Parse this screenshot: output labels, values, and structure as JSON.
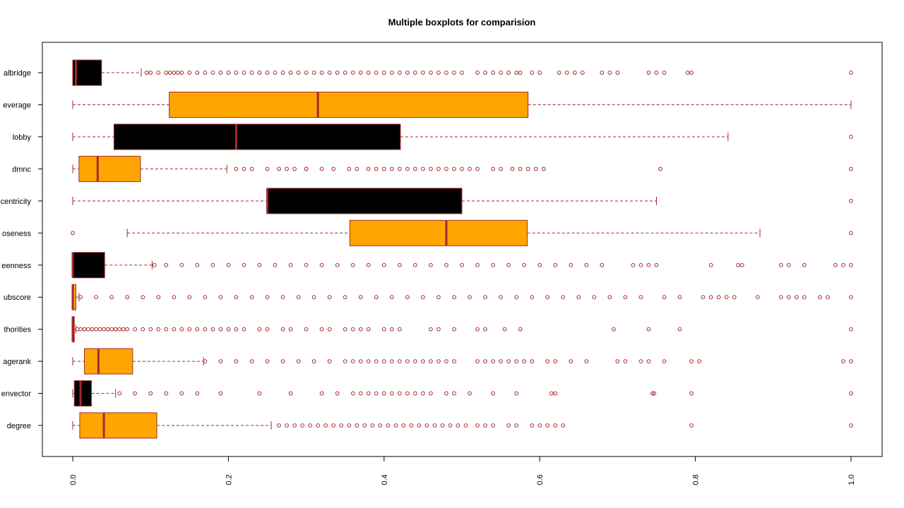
{
  "chart_data": {
    "type": "boxplot",
    "orientation": "horizontal",
    "title": "Multiple boxplots for comparision",
    "xlim": [
      0,
      1
    ],
    "x_ticks": [
      0,
      0.2,
      0.4,
      0.6,
      0.8,
      1
    ],
    "x_tick_labels": [
      "0.0",
      "0.2",
      "0.4",
      "0.6",
      "0.8",
      "1.0"
    ],
    "grid": false,
    "colors": {
      "box_fill_alternating": [
        "#ffa500",
        "#000000"
      ],
      "border": "#a52a2a",
      "median": "#a52a2a",
      "outlier": "#a52a2a"
    },
    "series": [
      {
        "label": "degree",
        "fill": "#ffa500",
        "whisker_low": 0.0,
        "q1": 0.009,
        "median": 0.04,
        "q3": 0.108,
        "whisker_high": 0.255,
        "outliers": [
          0.265,
          0.275,
          0.285,
          0.295,
          0.305,
          0.315,
          0.325,
          0.335,
          0.345,
          0.355,
          0.365,
          0.375,
          0.385,
          0.395,
          0.405,
          0.415,
          0.425,
          0.435,
          0.445,
          0.455,
          0.465,
          0.475,
          0.485,
          0.495,
          0.505,
          0.52,
          0.53,
          0.54,
          0.56,
          0.57,
          0.59,
          0.6,
          0.61,
          0.62,
          0.63,
          0.795,
          1.0
        ]
      },
      {
        "label": "envector",
        "fill": "#000000",
        "whisker_low": 0.0,
        "q1": 0.002,
        "median": 0.01,
        "q3": 0.024,
        "whisker_high": 0.055,
        "outliers": [
          0.06,
          0.08,
          0.1,
          0.12,
          0.14,
          0.16,
          0.19,
          0.24,
          0.28,
          0.32,
          0.34,
          0.36,
          0.37,
          0.38,
          0.39,
          0.4,
          0.41,
          0.42,
          0.43,
          0.44,
          0.45,
          0.46,
          0.48,
          0.49,
          0.51,
          0.54,
          0.57,
          0.615,
          0.62,
          0.745,
          0.747,
          0.795,
          1.0
        ]
      },
      {
        "label": "agerank",
        "fill": "#ffa500",
        "whisker_low": 0.0,
        "q1": 0.015,
        "median": 0.033,
        "q3": 0.077,
        "whisker_high": 0.168,
        "outliers": [
          0.17,
          0.19,
          0.21,
          0.23,
          0.25,
          0.27,
          0.29,
          0.31,
          0.33,
          0.35,
          0.36,
          0.37,
          0.38,
          0.39,
          0.4,
          0.41,
          0.42,
          0.43,
          0.44,
          0.45,
          0.46,
          0.47,
          0.48,
          0.49,
          0.52,
          0.53,
          0.54,
          0.55,
          0.56,
          0.57,
          0.58,
          0.59,
          0.61,
          0.62,
          0.64,
          0.66,
          0.7,
          0.71,
          0.73,
          0.74,
          0.76,
          0.795,
          0.805,
          0.99,
          1.0
        ]
      },
      {
        "label": "thorities",
        "fill": "#000000",
        "whisker_low": 0.0,
        "q1": 0.0,
        "median": 0.0,
        "q3": 0.002,
        "whisker_high": 0.004,
        "outliers": [
          0.006,
          0.01,
          0.015,
          0.02,
          0.025,
          0.03,
          0.035,
          0.04,
          0.045,
          0.05,
          0.055,
          0.06,
          0.065,
          0.07,
          0.08,
          0.09,
          0.1,
          0.11,
          0.12,
          0.13,
          0.14,
          0.15,
          0.16,
          0.17,
          0.18,
          0.19,
          0.2,
          0.21,
          0.22,
          0.24,
          0.25,
          0.27,
          0.28,
          0.3,
          0.32,
          0.33,
          0.35,
          0.36,
          0.37,
          0.38,
          0.4,
          0.41,
          0.42,
          0.46,
          0.47,
          0.49,
          0.52,
          0.53,
          0.555,
          0.575,
          0.695,
          0.74,
          0.78,
          1.0
        ]
      },
      {
        "label": "ubscore",
        "fill": "#ffa500",
        "whisker_low": 0.0,
        "q1": 0.0,
        "median": 0.0,
        "q3": 0.004,
        "whisker_high": 0.008,
        "outliers": [
          0.01,
          0.03,
          0.05,
          0.07,
          0.09,
          0.11,
          0.13,
          0.15,
          0.17,
          0.19,
          0.21,
          0.23,
          0.25,
          0.27,
          0.29,
          0.31,
          0.33,
          0.35,
          0.37,
          0.39,
          0.41,
          0.43,
          0.45,
          0.47,
          0.49,
          0.51,
          0.53,
          0.55,
          0.57,
          0.59,
          0.61,
          0.63,
          0.65,
          0.67,
          0.69,
          0.71,
          0.73,
          0.76,
          0.78,
          0.81,
          0.82,
          0.83,
          0.84,
          0.85,
          0.88,
          0.91,
          0.92,
          0.93,
          0.94,
          0.96,
          0.97,
          1.0
        ]
      },
      {
        "label": "eenness",
        "fill": "#000000",
        "whisker_low": 0.0,
        "q1": 0.0,
        "median": 0.0,
        "q3": 0.041,
        "whisker_high": 0.102,
        "outliers": [
          0.105,
          0.12,
          0.14,
          0.16,
          0.18,
          0.2,
          0.22,
          0.24,
          0.26,
          0.28,
          0.3,
          0.32,
          0.34,
          0.36,
          0.38,
          0.4,
          0.42,
          0.44,
          0.46,
          0.48,
          0.5,
          0.52,
          0.54,
          0.56,
          0.58,
          0.6,
          0.62,
          0.64,
          0.66,
          0.68,
          0.72,
          0.73,
          0.74,
          0.75,
          0.82,
          0.855,
          0.86,
          0.91,
          0.92,
          0.94,
          0.98,
          0.99,
          1.0
        ]
      },
      {
        "label": "oseness",
        "fill": "#ffa500",
        "whisker_low": 0.07,
        "q1": 0.356,
        "median": 0.48,
        "q3": 0.584,
        "whisker_high": 0.883,
        "outliers": [
          0.0,
          1.0
        ]
      },
      {
        "label": "centricity",
        "fill": "#000000",
        "whisker_low": 0.0,
        "q1": 0.25,
        "median": 0.25,
        "q3": 0.5,
        "whisker_high": 0.75,
        "outliers": [
          1.0
        ]
      },
      {
        "label": "dmnc",
        "fill": "#ffa500",
        "whisker_low": 0.0,
        "q1": 0.008,
        "median": 0.032,
        "q3": 0.087,
        "whisker_high": 0.198,
        "outliers": [
          0.21,
          0.22,
          0.23,
          0.25,
          0.265,
          0.275,
          0.285,
          0.3,
          0.3,
          0.32,
          0.335,
          0.355,
          0.365,
          0.38,
          0.39,
          0.4,
          0.41,
          0.42,
          0.43,
          0.44,
          0.45,
          0.46,
          0.47,
          0.48,
          0.49,
          0.5,
          0.51,
          0.52,
          0.54,
          0.55,
          0.565,
          0.575,
          0.585,
          0.595,
          0.605,
          0.755,
          1.0
        ]
      },
      {
        "label": "lobby",
        "fill": "#000000",
        "whisker_low": 0.0,
        "q1": 0.053,
        "median": 0.21,
        "q3": 0.421,
        "whisker_high": 0.842,
        "outliers": [
          1.0
        ]
      },
      {
        "label": "everage",
        "fill": "#ffa500",
        "whisker_low": 0.0,
        "q1": 0.124,
        "median": 0.315,
        "q3": 0.585,
        "whisker_high": 1.0,
        "outliers": []
      },
      {
        "label": "albridge",
        "fill": "#000000",
        "whisker_low": 0.0,
        "q1": 0.0,
        "median": 0.004,
        "q3": 0.037,
        "whisker_high": 0.088,
        "outliers": [
          0.095,
          0.1,
          0.11,
          0.12,
          0.125,
          0.13,
          0.135,
          0.14,
          0.15,
          0.16,
          0.17,
          0.18,
          0.19,
          0.2,
          0.21,
          0.22,
          0.23,
          0.24,
          0.25,
          0.26,
          0.27,
          0.28,
          0.29,
          0.3,
          0.31,
          0.32,
          0.33,
          0.34,
          0.35,
          0.36,
          0.37,
          0.38,
          0.39,
          0.4,
          0.41,
          0.42,
          0.43,
          0.44,
          0.45,
          0.46,
          0.47,
          0.48,
          0.49,
          0.5,
          0.52,
          0.53,
          0.54,
          0.55,
          0.56,
          0.57,
          0.575,
          0.59,
          0.6,
          0.625,
          0.635,
          0.645,
          0.655,
          0.68,
          0.69,
          0.7,
          0.74,
          0.75,
          0.76,
          0.79,
          0.795,
          1.0
        ]
      }
    ]
  }
}
